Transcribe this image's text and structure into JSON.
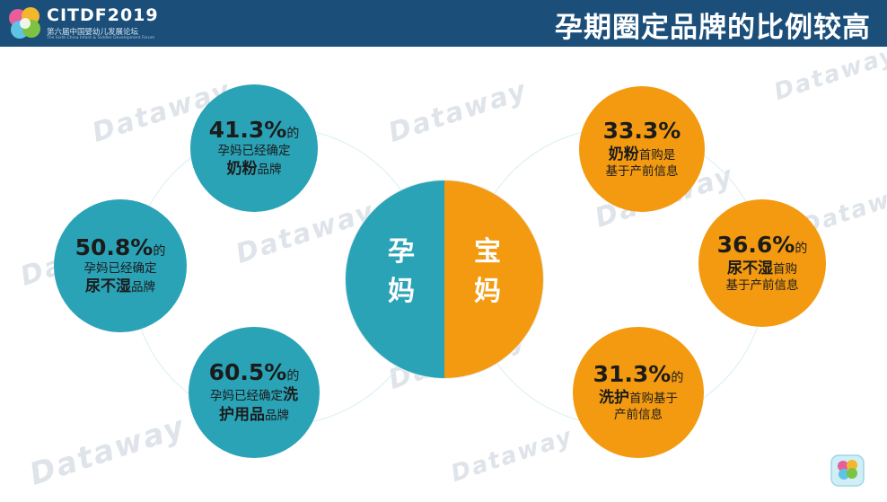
{
  "header": {
    "logo_name": "CITDF2019",
    "logo_subtitle": "第六届中国婴幼儿发展论坛",
    "logo_english": "The Sixth China Infant & Toddler Development Forum",
    "title": "孕期圈定品牌的比例较高"
  },
  "watermark": "Dataway",
  "center": {
    "left": {
      "chars": [
        "孕",
        "妈"
      ]
    },
    "right": {
      "chars": [
        "宝",
        "妈"
      ]
    }
  },
  "left_bubbles": [
    {
      "pct": "41.3%",
      "suffix": "的",
      "line1": "孕妈已经确定",
      "bold": "奶粉",
      "tail": "品牌"
    },
    {
      "pct": "50.8%",
      "suffix": "的",
      "line1": "孕妈已经确定",
      "bold": "尿不湿",
      "tail": "品牌"
    },
    {
      "pct": "60.5%",
      "suffix": "的",
      "line1": "孕妈已经确定",
      "bold1": "洗",
      "bold2": "护用品",
      "tail": "品牌"
    }
  ],
  "right_bubbles": [
    {
      "pct": "33.3%",
      "suffix": "",
      "bold": "奶粉",
      "line2": "首购是",
      "line3": "基于产前信息"
    },
    {
      "pct": "36.6%",
      "suffix": "的",
      "bold": "尿不湿",
      "line2": "首购",
      "line3": "基于产前信息"
    },
    {
      "pct": "31.3%",
      "suffix": "的",
      "bold": "洗护",
      "line2": "首购基于",
      "line3": "产前信息"
    }
  ],
  "colors": {
    "header": "#1b4f7a",
    "teal": "#2aa3b7",
    "orange": "#f39a10",
    "text": "#1b1b1b"
  }
}
